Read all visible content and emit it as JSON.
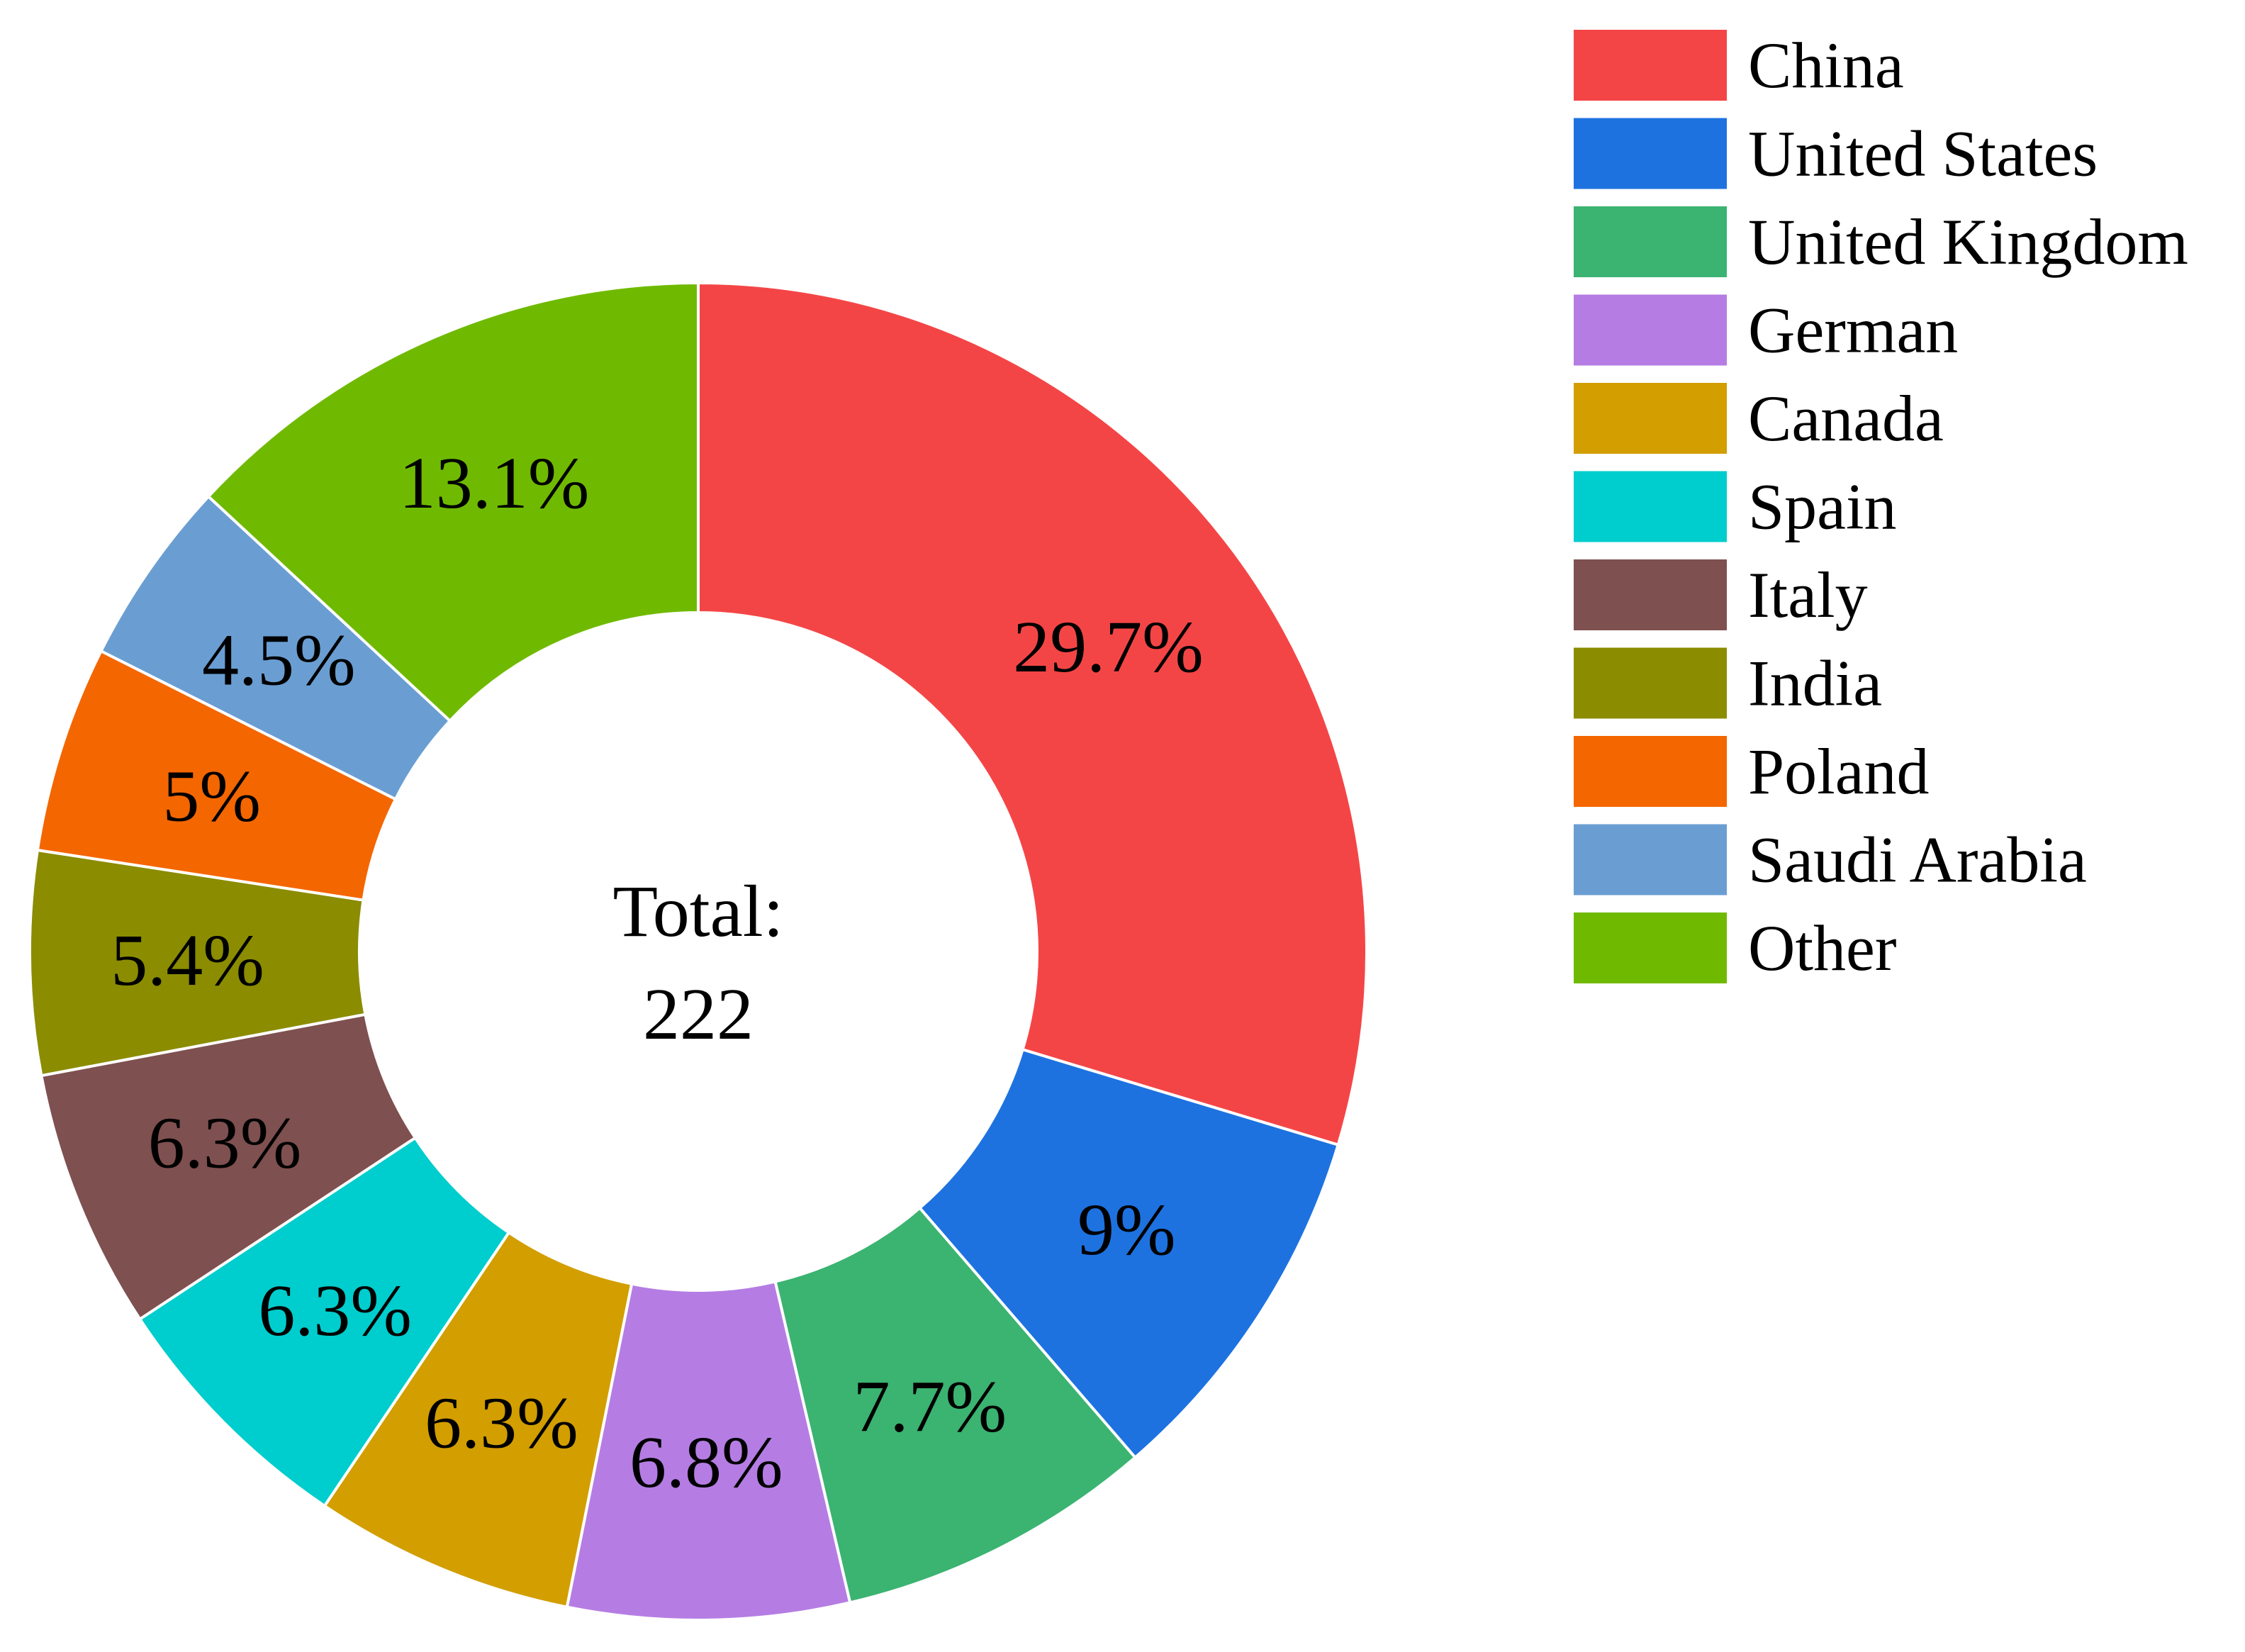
{
  "chart_data": {
    "type": "pie",
    "variant": "donut",
    "center_label": {
      "line1": "Total:",
      "line2": "222"
    },
    "slices": [
      {
        "name": "China",
        "value": 29.7,
        "label": "29.7%",
        "color": "#f44546"
      },
      {
        "name": "United States",
        "value": 9.0,
        "label": "9%",
        "color": "#1d72e0"
      },
      {
        "name": "United Kingdom",
        "value": 7.7,
        "label": "7.7%",
        "color": "#3bb371"
      },
      {
        "name": "German",
        "value": 6.8,
        "label": "6.8%",
        "color": "#b57de3"
      },
      {
        "name": "Canada",
        "value": 6.3,
        "label": "6.3%",
        "color": "#d29e00"
      },
      {
        "name": "Spain",
        "value": 6.3,
        "label": "6.3%",
        "color": "#00cdcd"
      },
      {
        "name": "Italy",
        "value": 6.3,
        "label": "6.3%",
        "color": "#7f5050"
      },
      {
        "name": "India",
        "value": 5.4,
        "label": "5.4%",
        "color": "#8b8c00"
      },
      {
        "name": "Poland",
        "value": 5.0,
        "label": "5%",
        "color": "#f46600"
      },
      {
        "name": "Saudi Arabia",
        "value": 4.5,
        "label": "4.5%",
        "color": "#6a9ed2"
      },
      {
        "name": "Other",
        "value": 13.1,
        "label": "13.1%",
        "color": "#6fba00"
      }
    ],
    "start_angle": "12 o'clock",
    "direction": "clockwise",
    "legend_position": "top-right"
  }
}
